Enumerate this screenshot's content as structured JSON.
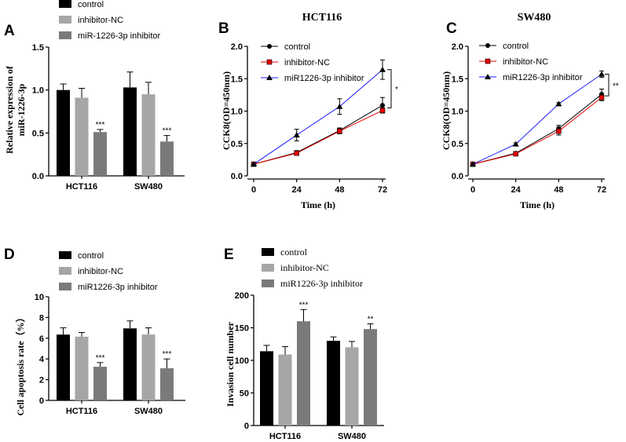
{
  "panels": [
    {
      "id": "A",
      "type": "bar",
      "ylabel": "Relative expression of miR-1226-3p",
      "ylabel_lines": [
        "Relative expression of",
        "miR-1226-3p"
      ],
      "xlabel": "",
      "ylim": [
        0,
        1.5
      ],
      "yticks": [
        "0.0",
        "0.5",
        "1.0",
        "1.5"
      ],
      "ytick_values": [
        0,
        0.5,
        1.0,
        1.5
      ],
      "categories": [
        "HCT116",
        "SW480"
      ],
      "legend": [
        "control",
        "inhibitor-NC",
        "miR-1226-3p inhibitor"
      ],
      "series": [
        {
          "name": "control",
          "color": "#000000",
          "values": [
            1.0,
            1.03
          ],
          "errors": [
            0.07,
            0.18
          ]
        },
        {
          "name": "inhibitor-NC",
          "color": "#a6a6a6",
          "values": [
            0.91,
            0.95
          ],
          "errors": [
            0.11,
            0.14
          ]
        },
        {
          "name": "miR-1226-3p inhibitor",
          "color": "#7a7a7a",
          "values": [
            0.51,
            0.4
          ],
          "errors": [
            0.03,
            0.07
          ]
        }
      ],
      "annotations": [
        {
          "category": 0,
          "series": 2,
          "text": "***"
        },
        {
          "category": 1,
          "series": 2,
          "text": "***"
        }
      ]
    },
    {
      "id": "B",
      "type": "line",
      "title": "HCT116",
      "ylabel": "CCK8(OD=450nm)",
      "xlabel": "Time (h)",
      "x": [
        0,
        24,
        48,
        72
      ],
      "xticks": [
        "0",
        "24",
        "48",
        "72"
      ],
      "ylim": [
        0,
        2.0
      ],
      "yticks": [
        "0.0",
        "0.5",
        "1.0",
        "1.5",
        "2.0"
      ],
      "ytick_values": [
        0,
        0.5,
        1.0,
        1.5,
        2.0
      ],
      "series": [
        {
          "name": "control",
          "color": "#000000",
          "marker": "circle",
          "values": [
            0.18,
            0.36,
            0.7,
            1.09
          ],
          "errors": [
            0.01,
            0.03,
            0.04,
            0.12
          ]
        },
        {
          "name": "inhibitor-NC",
          "color": "#e60000",
          "marker": "square",
          "values": [
            0.18,
            0.35,
            0.69,
            1.01
          ],
          "errors": [
            0.01,
            0.03,
            0.04,
            0.04
          ]
        },
        {
          "name": "miR1226-3p inhibitor",
          "color": "#1a1aff",
          "marker": "triangle",
          "values": [
            0.18,
            0.63,
            1.07,
            1.64
          ],
          "errors": [
            0.01,
            0.09,
            0.12,
            0.15
          ]
        }
      ],
      "significance": "*"
    },
    {
      "id": "C",
      "type": "line",
      "title": "SW480",
      "ylabel": "CCK8(OD=450nm)",
      "xlabel": "Time (h)",
      "x": [
        0,
        24,
        48,
        72
      ],
      "xticks": [
        "0",
        "24",
        "48",
        "72"
      ],
      "ylim": [
        0,
        2.0
      ],
      "yticks": [
        "0.0",
        "0.5",
        "1.0",
        "1.5",
        "2.0"
      ],
      "ytick_values": [
        0,
        0.5,
        1.0,
        1.5,
        2.0
      ],
      "series": [
        {
          "name": "control",
          "color": "#000000",
          "marker": "circle",
          "values": [
            0.18,
            0.35,
            0.73,
            1.26
          ],
          "errors": [
            0.01,
            0.02,
            0.05,
            0.08
          ]
        },
        {
          "name": "inhibitor-NC",
          "color": "#e60000",
          "marker": "square",
          "values": [
            0.18,
            0.34,
            0.69,
            1.21
          ],
          "errors": [
            0.01,
            0.02,
            0.06,
            0.05
          ]
        },
        {
          "name": "miR1226-3p inhibitor",
          "color": "#1a1aff",
          "marker": "triangle",
          "values": [
            0.18,
            0.49,
            1.11,
            1.57
          ],
          "errors": [
            0.01,
            0.02,
            0.02,
            0.05
          ]
        }
      ],
      "significance": "**"
    },
    {
      "id": "D",
      "type": "bar",
      "ylabel": "Cell apoptosis rate（%）",
      "xlabel": "",
      "ylim": [
        0,
        10
      ],
      "yticks": [
        "0",
        "2",
        "4",
        "6",
        "8",
        "10"
      ],
      "ytick_values": [
        0,
        2,
        4,
        6,
        8,
        10
      ],
      "categories": [
        "HCT116",
        "SW480"
      ],
      "legend": [
        "control",
        "inhibitor-NC",
        "miR1226-3p inhibitor"
      ],
      "series": [
        {
          "name": "control",
          "color": "#000000",
          "values": [
            6.35,
            6.95
          ],
          "errors": [
            0.65,
            0.72
          ]
        },
        {
          "name": "inhibitor-NC",
          "color": "#a6a6a6",
          "values": [
            6.15,
            6.35
          ],
          "errors": [
            0.4,
            0.65
          ]
        },
        {
          "name": "miR1226-3p inhibitor",
          "color": "#7a7a7a",
          "values": [
            3.25,
            3.1
          ],
          "errors": [
            0.4,
            0.9
          ]
        }
      ],
      "annotations": [
        {
          "category": 0,
          "series": 2,
          "text": "***"
        },
        {
          "category": 1,
          "series": 2,
          "text": "***"
        }
      ]
    },
    {
      "id": "E",
      "type": "bar",
      "ylabel": "Invasion cell number",
      "xlabel": "",
      "ylim": [
        0,
        200
      ],
      "yticks": [
        "0",
        "50",
        "100",
        "150",
        "200"
      ],
      "ytick_values": [
        0,
        50,
        100,
        150,
        200
      ],
      "categories": [
        "HCT116",
        "SW480"
      ],
      "legend": [
        "control",
        "inhibitor-NC",
        "miR1226-3p inhibitor"
      ],
      "series": [
        {
          "name": "control",
          "color": "#000000",
          "values": [
            114,
            130
          ],
          "errors": [
            9,
            6
          ]
        },
        {
          "name": "inhibitor-NC",
          "color": "#a6a6a6",
          "values": [
            109,
            120
          ],
          "errors": [
            12,
            9
          ]
        },
        {
          "name": "miR1226-3p inhibitor",
          "color": "#7a7a7a",
          "values": [
            160,
            148
          ],
          "errors": [
            18,
            8
          ]
        }
      ],
      "annotations": [
        {
          "category": 0,
          "series": 2,
          "text": "***"
        },
        {
          "category": 1,
          "series": 2,
          "text": "**"
        }
      ]
    }
  ],
  "chart_data": [
    {
      "type": "bar",
      "title": "",
      "xlabel": "",
      "ylabel": "Relative expression of miR-1226-3p",
      "ylim": [
        0,
        1.5
      ],
      "categories": [
        "HCT116",
        "SW480"
      ],
      "series": [
        {
          "name": "control",
          "values": [
            1.0,
            1.03
          ]
        },
        {
          "name": "inhibitor-NC",
          "values": [
            0.91,
            0.95
          ]
        },
        {
          "name": "miR-1226-3p inhibitor",
          "values": [
            0.51,
            0.4
          ]
        }
      ]
    },
    {
      "type": "line",
      "title": "HCT116",
      "xlabel": "Time (h)",
      "ylabel": "CCK8(OD=450nm)",
      "ylim": [
        0,
        2.0
      ],
      "x": [
        0,
        24,
        48,
        72
      ],
      "series": [
        {
          "name": "control",
          "values": [
            0.18,
            0.36,
            0.7,
            1.09
          ]
        },
        {
          "name": "inhibitor-NC",
          "values": [
            0.18,
            0.35,
            0.69,
            1.01
          ]
        },
        {
          "name": "miR1226-3p inhibitor",
          "values": [
            0.18,
            0.63,
            1.07,
            1.64
          ]
        }
      ]
    },
    {
      "type": "line",
      "title": "SW480",
      "xlabel": "Time (h)",
      "ylabel": "CCK8(OD=450nm)",
      "ylim": [
        0,
        2.0
      ],
      "x": [
        0,
        24,
        48,
        72
      ],
      "series": [
        {
          "name": "control",
          "values": [
            0.18,
            0.35,
            0.73,
            1.26
          ]
        },
        {
          "name": "inhibitor-NC",
          "values": [
            0.18,
            0.34,
            0.69,
            1.21
          ]
        },
        {
          "name": "miR1226-3p inhibitor",
          "values": [
            0.18,
            0.49,
            1.11,
            1.57
          ]
        }
      ]
    },
    {
      "type": "bar",
      "title": "",
      "xlabel": "",
      "ylabel": "Cell apoptosis rate（%）",
      "ylim": [
        0,
        10
      ],
      "categories": [
        "HCT116",
        "SW480"
      ],
      "series": [
        {
          "name": "control",
          "values": [
            6.35,
            6.95
          ]
        },
        {
          "name": "inhibitor-NC",
          "values": [
            6.15,
            6.35
          ]
        },
        {
          "name": "miR1226-3p inhibitor",
          "values": [
            3.25,
            3.1
          ]
        }
      ]
    },
    {
      "type": "bar",
      "title": "",
      "xlabel": "",
      "ylabel": "Invasion cell number",
      "ylim": [
        0,
        200
      ],
      "categories": [
        "HCT116",
        "SW480"
      ],
      "series": [
        {
          "name": "control",
          "values": [
            114,
            130
          ]
        },
        {
          "name": "inhibitor-NC",
          "values": [
            109,
            120
          ]
        },
        {
          "name": "miR1226-3p inhibitor",
          "values": [
            160,
            148
          ]
        }
      ]
    }
  ]
}
